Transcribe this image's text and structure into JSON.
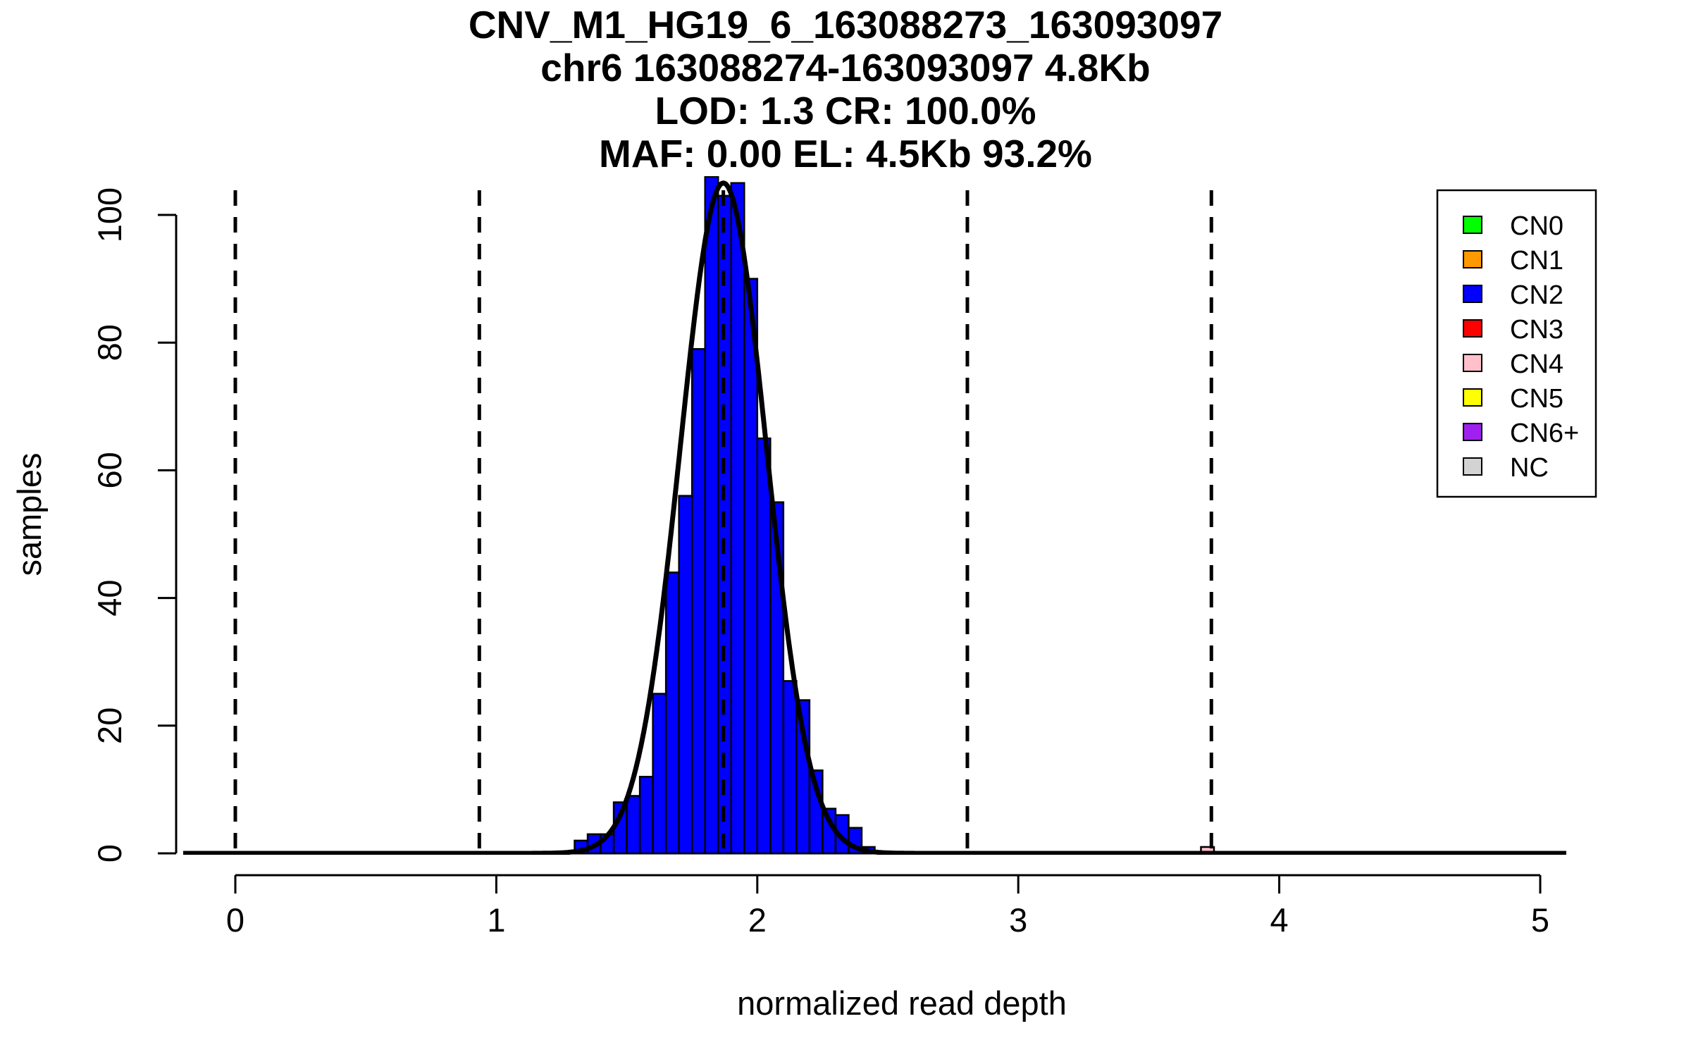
{
  "chart_data": {
    "type": "bar",
    "title_lines": [
      "CNV_M1_HG19_6_163088273_163093097",
      "chr6 163088274-163093097 4.8Kb",
      "LOD: 1.3 CR: 100.0%",
      "MAF: 0.00 EL: 4.5Kb 93.2%"
    ],
    "xlabel": "normalized read depth",
    "ylabel": "samples",
    "xlim": [
      -0.2,
      5.1
    ],
    "ylim": [
      0,
      106
    ],
    "x_ticks": [
      0,
      1,
      2,
      3,
      4,
      5
    ],
    "y_ticks": [
      0,
      20,
      40,
      60,
      80,
      100
    ],
    "bin_width": 0.05,
    "bins_start": [
      1.3,
      1.35,
      1.4,
      1.45,
      1.5,
      1.55,
      1.6,
      1.65,
      1.7,
      1.75,
      1.8,
      1.85,
      1.9,
      1.95,
      2.0,
      2.05,
      2.1,
      2.15,
      2.2,
      2.25,
      2.3,
      2.35,
      2.4
    ],
    "bin_counts": [
      2,
      3,
      3,
      8,
      9,
      12,
      25,
      44,
      56,
      79,
      106,
      103,
      105,
      90,
      65,
      55,
      27,
      24,
      13,
      7,
      6,
      4,
      1
    ],
    "small_bins_start": [
      3.7
    ],
    "small_bin_counts": [
      1
    ],
    "bar_color": "#0000ff",
    "curve": {
      "mean": 1.87,
      "sd": 0.165,
      "peak": 105,
      "color": "#000000"
    },
    "cn_boundaries": [
      0.0,
      0.935,
      1.87,
      2.805,
      3.74
    ],
    "legend": {
      "position": "top-right",
      "items": [
        {
          "label": "CN0",
          "color": "#00ff00"
        },
        {
          "label": "CN1",
          "color": "#ff9900"
        },
        {
          "label": "CN2",
          "color": "#0000ff"
        },
        {
          "label": "CN3",
          "color": "#ff0000"
        },
        {
          "label": "CN4",
          "color": "#ffc0cb"
        },
        {
          "label": "CN5",
          "color": "#ffff00"
        },
        {
          "label": "CN6+",
          "color": "#a020f0"
        },
        {
          "label": "NC",
          "color": "#d3d3d3"
        }
      ]
    }
  }
}
